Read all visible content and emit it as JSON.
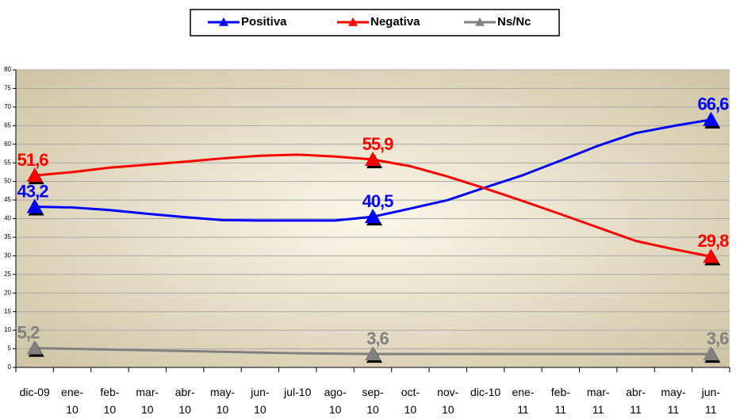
{
  "chart_data": {
    "type": "line",
    "categories": [
      "dic-09",
      "ene-\n10",
      "feb-\n10",
      "mar-\n10",
      "abr-\n10",
      "may-\n10",
      "jun-\n10",
      "jul-10",
      "ago-\n10",
      "sep-\n10",
      "oct-\n10",
      "nov-\n10",
      "dic-10",
      "ene-\n11",
      "feb-\n11",
      "mar-\n11",
      "abr-\n11",
      "may-\n11",
      "jun-\n11"
    ],
    "series": [
      {
        "name": "Positiva",
        "color": "#0000ff",
        "values": [
          43.2,
          43,
          42.3,
          41.3,
          40.4,
          39.6,
          39.5,
          39.5,
          39.5,
          40.5,
          42.7,
          45,
          48.4,
          51.7,
          55.6,
          59.6,
          63,
          64.9,
          66.6
        ],
        "value_labels": [
          "43,2",
          null,
          null,
          null,
          null,
          null,
          null,
          null,
          null,
          "40,5",
          null,
          null,
          null,
          null,
          null,
          null,
          null,
          null,
          "66,6"
        ]
      },
      {
        "name": "Negativa",
        "color": "#ff0000",
        "values": [
          51.6,
          52.5,
          53.7,
          54.5,
          55.3,
          56.2,
          56.9,
          57.2,
          56.7,
          55.9,
          54.1,
          51.3,
          48.1,
          44.7,
          41.2,
          37.6,
          34,
          31.8,
          29.8
        ],
        "value_labels": [
          "51,6",
          null,
          null,
          null,
          null,
          null,
          null,
          null,
          null,
          "55,9",
          null,
          null,
          null,
          null,
          null,
          null,
          null,
          null,
          "29,8"
        ]
      },
      {
        "name": "Ns/Nc",
        "color": "#808080",
        "values": [
          5.2,
          5,
          4.8,
          4.6,
          4.4,
          4.2,
          4,
          3.8,
          3.7,
          3.6,
          3.6,
          3.6,
          3.6,
          3.6,
          3.6,
          3.6,
          3.6,
          3.6,
          3.6
        ],
        "value_labels": [
          "5,2",
          null,
          null,
          null,
          null,
          null,
          null,
          null,
          null,
          "3,6",
          null,
          null,
          null,
          null,
          null,
          null,
          null,
          null,
          "3,6"
        ]
      }
    ],
    "ylim": [
      0,
      80
    ],
    "yticks": [
      0,
      5,
      10,
      15,
      20,
      25,
      30,
      35,
      40,
      45,
      50,
      55,
      60,
      65,
      70,
      75,
      80
    ],
    "grid": true
  }
}
